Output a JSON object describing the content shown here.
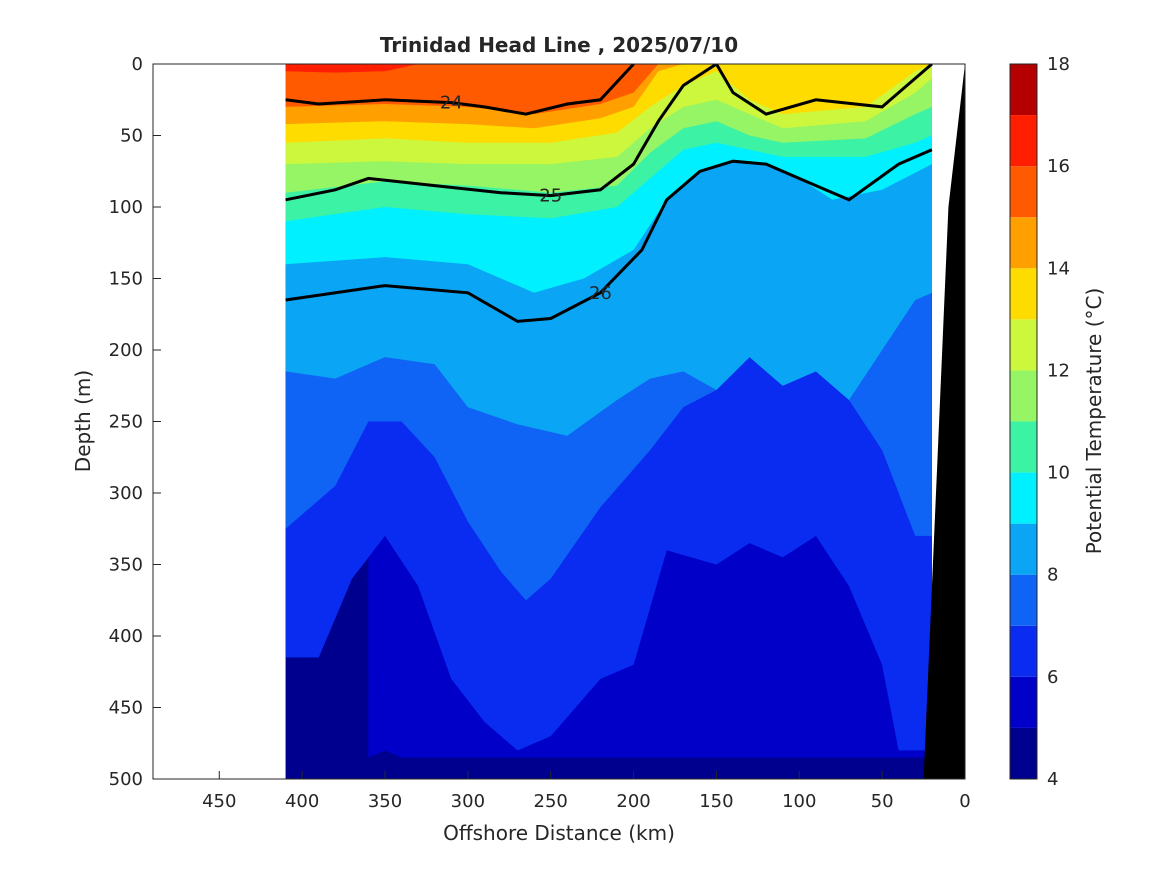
{
  "chart_data": {
    "type": "heatmap",
    "title": "Trinidad Head Line , 2025/07/10",
    "xlabel": "Offshore Distance (km)",
    "ylabel": "Depth (m)",
    "colorbar_label": "Potential Temperature (°C)",
    "xlim": [
      490,
      0
    ],
    "ylim": [
      0,
      500
    ],
    "x_reversed": true,
    "y_reversed": true,
    "x_ticks": [
      "450",
      "400",
      "350",
      "300",
      "250",
      "200",
      "150",
      "100",
      "50",
      "0"
    ],
    "y_ticks": [
      "0",
      "50",
      "100",
      "150",
      "200",
      "250",
      "300",
      "350",
      "400",
      "450",
      "500"
    ],
    "colorbar": {
      "range": [
        4,
        18
      ],
      "ticks": [
        "4",
        "6",
        "8",
        "10",
        "12",
        "14",
        "16",
        "18"
      ],
      "levels": [
        {
          "from": 4,
          "to": 5,
          "color": "#00008f"
        },
        {
          "from": 5,
          "to": 6,
          "color": "#0000c8"
        },
        {
          "from": 6,
          "to": 7,
          "color": "#0a2cf0"
        },
        {
          "from": 7,
          "to": 8,
          "color": "#0f64f5"
        },
        {
          "from": 8,
          "to": 9,
          "color": "#0aa5f5"
        },
        {
          "from": 9,
          "to": 10,
          "color": "#00f0ff"
        },
        {
          "from": 10,
          "to": 11,
          "color": "#3cf2a5"
        },
        {
          "from": 11,
          "to": 12,
          "color": "#96f564"
        },
        {
          "from": 12,
          "to": 13,
          "color": "#cdf73c"
        },
        {
          "from": 13,
          "to": 14,
          "color": "#ffdc00"
        },
        {
          "from": 14,
          "to": 15,
          "color": "#ffa000"
        },
        {
          "from": 15,
          "to": 16,
          "color": "#ff5a00"
        },
        {
          "from": 16,
          "to": 17,
          "color": "#ff1e00"
        },
        {
          "from": 17,
          "to": 18,
          "color": "#b40000"
        }
      ]
    },
    "data_x_range": [
      410,
      20
    ],
    "temperature_bands": [
      {
        "temp_range": [
          16,
          18
        ],
        "color": "#ff1e00",
        "top": [
          [
            410,
            0
          ],
          [
            350,
            0
          ],
          [
            0,
            0
          ]
        ],
        "bottom": [
          [
            410,
            5
          ],
          [
            380,
            6
          ],
          [
            350,
            5
          ],
          [
            330,
            0
          ]
        ]
      },
      {
        "temp_range": [
          15,
          16
        ],
        "color": "#ff5a00",
        "bottom": [
          [
            410,
            30
          ],
          [
            350,
            28
          ],
          [
            300,
            30
          ],
          [
            260,
            35
          ],
          [
            220,
            28
          ],
          [
            200,
            20
          ],
          [
            185,
            0
          ]
        ]
      },
      {
        "temp_range": [
          14,
          15
        ],
        "color": "#ffa000",
        "bottom": [
          [
            410,
            42
          ],
          [
            350,
            40
          ],
          [
            300,
            42
          ],
          [
            260,
            45
          ],
          [
            220,
            38
          ],
          [
            200,
            30
          ],
          [
            185,
            5
          ],
          [
            170,
            0
          ]
        ]
      },
      {
        "temp_range": [
          13,
          14
        ],
        "color": "#ffdc00",
        "bottom": [
          [
            410,
            55
          ],
          [
            350,
            52
          ],
          [
            300,
            55
          ],
          [
            250,
            55
          ],
          [
            210,
            48
          ],
          [
            190,
            30
          ],
          [
            170,
            15
          ],
          [
            150,
            5
          ],
          [
            130,
            25
          ],
          [
            110,
            35
          ],
          [
            60,
            30
          ],
          [
            30,
            5
          ],
          [
            20,
            0
          ]
        ]
      },
      {
        "temp_range": [
          12,
          13
        ],
        "color": "#cdf73c",
        "bottom": [
          [
            410,
            70
          ],
          [
            350,
            68
          ],
          [
            300,
            70
          ],
          [
            250,
            70
          ],
          [
            210,
            65
          ],
          [
            190,
            45
          ],
          [
            170,
            30
          ],
          [
            150,
            25
          ],
          [
            130,
            35
          ],
          [
            110,
            45
          ],
          [
            60,
            40
          ],
          [
            30,
            20
          ],
          [
            20,
            10
          ]
        ]
      },
      {
        "temp_range": [
          11,
          12
        ],
        "color": "#96f564",
        "bottom": [
          [
            410,
            90
          ],
          [
            350,
            82
          ],
          [
            300,
            85
          ],
          [
            250,
            90
          ],
          [
            210,
            85
          ],
          [
            190,
            62
          ],
          [
            170,
            45
          ],
          [
            150,
            40
          ],
          [
            130,
            50
          ],
          [
            110,
            55
          ],
          [
            60,
            52
          ],
          [
            30,
            35
          ],
          [
            20,
            30
          ]
        ]
      },
      {
        "temp_range": [
          10,
          11
        ],
        "color": "#3cf2a5",
        "bottom": [
          [
            410,
            110
          ],
          [
            350,
            100
          ],
          [
            300,
            105
          ],
          [
            250,
            108
          ],
          [
            210,
            100
          ],
          [
            190,
            80
          ],
          [
            170,
            60
          ],
          [
            150,
            55
          ],
          [
            130,
            60
          ],
          [
            110,
            65
          ],
          [
            60,
            65
          ],
          [
            30,
            55
          ],
          [
            20,
            50
          ]
        ]
      },
      {
        "temp_range": [
          9,
          10
        ],
        "color": "#00f0ff",
        "bottom": [
          [
            410,
            140
          ],
          [
            350,
            135
          ],
          [
            300,
            140
          ],
          [
            260,
            160
          ],
          [
            230,
            150
          ],
          [
            200,
            130
          ],
          [
            180,
            95
          ],
          [
            160,
            75
          ],
          [
            140,
            68
          ],
          [
            120,
            70
          ],
          [
            100,
            80
          ],
          [
            80,
            95
          ],
          [
            50,
            88
          ],
          [
            20,
            70
          ]
        ]
      },
      {
        "temp_range": [
          8,
          9
        ],
        "color": "#0aa5f5",
        "bottom": [
          [
            410,
            215
          ],
          [
            380,
            220
          ],
          [
            350,
            205
          ],
          [
            320,
            210
          ],
          [
            300,
            240
          ],
          [
            270,
            252
          ],
          [
            240,
            260
          ],
          [
            210,
            235
          ],
          [
            190,
            220
          ],
          [
            170,
            215
          ],
          [
            150,
            228
          ],
          [
            130,
            205
          ],
          [
            110,
            225
          ],
          [
            90,
            215
          ],
          [
            70,
            235
          ],
          [
            50,
            200
          ],
          [
            30,
            165
          ],
          [
            20,
            160
          ]
        ]
      },
      {
        "temp_range": [
          7,
          8
        ],
        "color": "#0f64f5",
        "bottom": [
          [
            410,
            325
          ],
          [
            380,
            295
          ],
          [
            360,
            250
          ],
          [
            340,
            250
          ],
          [
            320,
            275
          ],
          [
            300,
            320
          ],
          [
            280,
            355
          ],
          [
            265,
            375
          ],
          [
            250,
            360
          ],
          [
            220,
            310
          ],
          [
            190,
            270
          ],
          [
            170,
            240
          ],
          [
            150,
            228
          ],
          [
            130,
            205
          ],
          [
            110,
            225
          ],
          [
            90,
            215
          ],
          [
            70,
            235
          ],
          [
            50,
            270
          ],
          [
            30,
            330
          ]
        ]
      },
      {
        "temp_range": [
          6,
          7
        ],
        "color": "#0a2cf0",
        "bottom": [
          [
            410,
            415
          ],
          [
            390,
            415
          ],
          [
            370,
            360
          ],
          [
            350,
            330
          ],
          [
            330,
            365
          ],
          [
            310,
            430
          ],
          [
            290,
            460
          ],
          [
            270,
            480
          ],
          [
            250,
            470
          ],
          [
            220,
            430
          ],
          [
            200,
            420
          ],
          [
            180,
            340
          ],
          [
            150,
            350
          ],
          [
            130,
            335
          ],
          [
            110,
            345
          ],
          [
            90,
            330
          ],
          [
            70,
            365
          ],
          [
            50,
            420
          ],
          [
            40,
            480
          ]
        ]
      },
      {
        "temp_range": [
          5,
          6
        ],
        "color": "#0000c8",
        "bottom": [
          [
            360,
            485
          ],
          [
            350,
            480
          ],
          [
            340,
            485
          ]
        ]
      }
    ],
    "density_contours": [
      {
        "label": "24",
        "bold": true,
        "points": [
          [
            410,
            25
          ],
          [
            390,
            28
          ],
          [
            350,
            25
          ],
          [
            310,
            27
          ],
          [
            290,
            30
          ],
          [
            265,
            35
          ],
          [
            240,
            28
          ],
          [
            220,
            25
          ],
          [
            200,
            0
          ]
        ]
      },
      {
        "label": "25",
        "bold": true,
        "points": [
          [
            410,
            95
          ],
          [
            380,
            88
          ],
          [
            360,
            80
          ],
          [
            320,
            85
          ],
          [
            280,
            90
          ],
          [
            250,
            92
          ],
          [
            220,
            88
          ],
          [
            200,
            70
          ],
          [
            185,
            40
          ],
          [
            170,
            15
          ],
          [
            150,
            0
          ],
          [
            140,
            20
          ],
          [
            120,
            35
          ],
          [
            90,
            25
          ],
          [
            50,
            30
          ],
          [
            20,
            0
          ]
        ]
      },
      {
        "label": "26",
        "bold": true,
        "points": [
          [
            410,
            165
          ],
          [
            350,
            155
          ],
          [
            300,
            160
          ],
          [
            270,
            180
          ],
          [
            250,
            178
          ],
          [
            220,
            160
          ],
          [
            195,
            130
          ],
          [
            180,
            95
          ],
          [
            160,
            75
          ],
          [
            140,
            68
          ],
          [
            120,
            70
          ],
          [
            90,
            85
          ],
          [
            70,
            95
          ],
          [
            40,
            70
          ],
          [
            20,
            60
          ]
        ]
      }
    ],
    "bathymetry_color": "#000000"
  }
}
